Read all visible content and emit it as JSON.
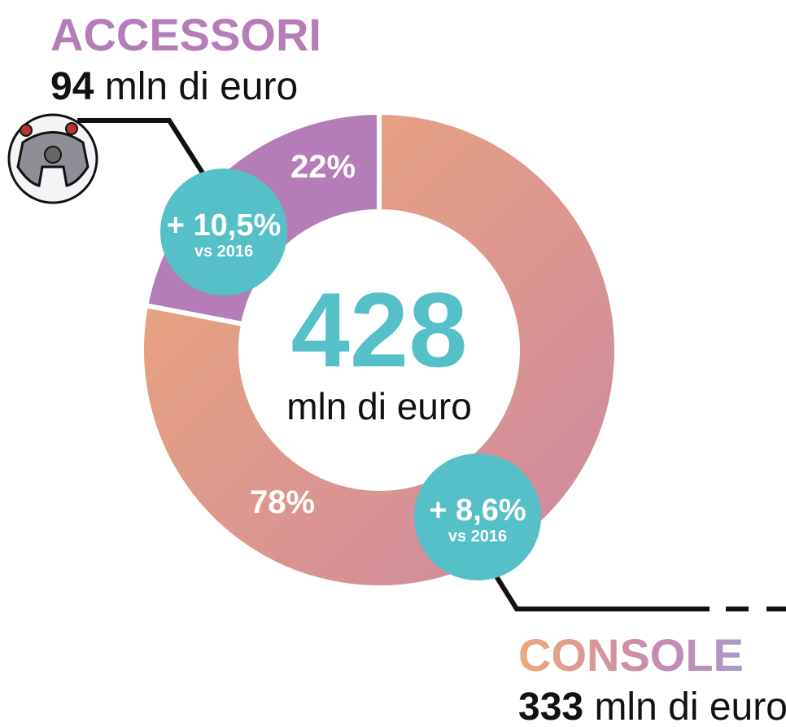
{
  "chart_data": {
    "type": "donut",
    "categories": [
      "ACCESSORI",
      "CONSOLE"
    ],
    "values": [
      22,
      78
    ],
    "value_labels": [
      "22%",
      "78%"
    ],
    "colors": [
      "#b57db8",
      "#e09a8c"
    ],
    "amounts": [
      94,
      333
    ],
    "unit": "mln di euro",
    "total": 428,
    "growth_labels": [
      "+ 10,5%",
      "+ 8,6%"
    ],
    "growth_note": "vs 2016"
  }
}
